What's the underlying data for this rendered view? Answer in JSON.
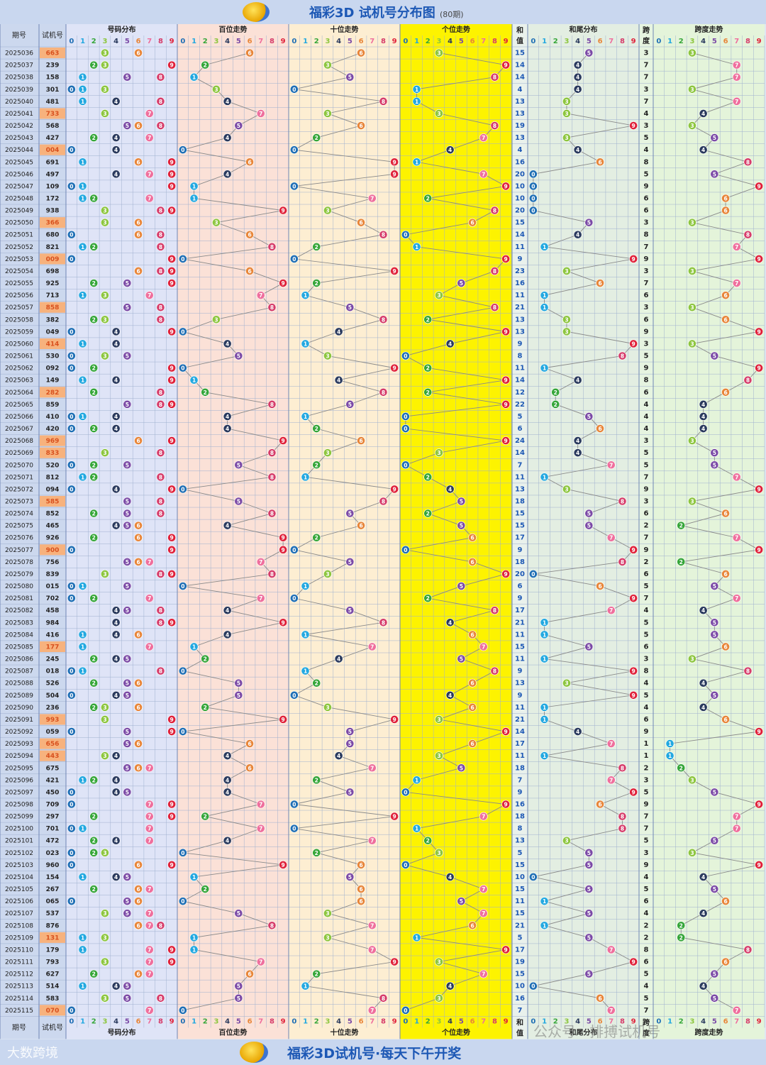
{
  "title": "福彩3D 试机号分布图",
  "title_sub": "(80期)",
  "footer_title": "福彩3D试机号·每天下午开奖",
  "watermark_left": "大数跨境",
  "watermark_right": "公众号 · 排搏试机号",
  "headers": {
    "period": "期号",
    "trial": "试机号",
    "distribution": "号码分布",
    "hundreds": "百位走势",
    "tens": "十位走势",
    "units": "个位走势",
    "sum_top": "和",
    "sum_bottom": "值",
    "sum_tail": "和尾分布",
    "span_top": "跨",
    "span_bottom": "度",
    "span_trend": "跨度走势"
  },
  "digits": [
    "0",
    "1",
    "2",
    "3",
    "4",
    "5",
    "6",
    "7",
    "8",
    "9"
  ],
  "colors": {
    "0": "#1f6fb5",
    "1": "#22a8e0",
    "2": "#35a639",
    "3": "#8dc63f",
    "4": "#2a3a5e",
    "5": "#7b4aa6",
    "6": "#e8863a",
    "7": "#ef6f9d",
    "8": "#d63c6a",
    "9": "#e0213a",
    "highlight_trial": "#f7b27d"
  },
  "chart_data": {
    "type": "table",
    "periods": [
      "2025036",
      "2025037",
      "2025038",
      "2025039",
      "2025040",
      "2025041",
      "2025042",
      "2025043",
      "2025044",
      "2025045",
      "2025046",
      "2025047",
      "2025048",
      "2025049",
      "2025050",
      "2025051",
      "2025052",
      "2025053",
      "2025054",
      "2025055",
      "2025056",
      "2025057",
      "2025058",
      "2025059",
      "2025060",
      "2025061",
      "2025062",
      "2025063",
      "2025064",
      "2025065",
      "2025066",
      "2025067",
      "2025068",
      "2025069",
      "2025070",
      "2025071",
      "2025072",
      "2025073",
      "2025074",
      "2025075",
      "2025076",
      "2025077",
      "2025078",
      "2025079",
      "2025080",
      "2025081",
      "2025082",
      "2025083",
      "2025084",
      "2025085",
      "2025086",
      "2025087",
      "2025088",
      "2025089",
      "2025090",
      "2025091",
      "2025092",
      "2025093",
      "2025094",
      "2025095",
      "2025096",
      "2025097",
      "2025098",
      "2025099",
      "2025100",
      "2025101",
      "2025102",
      "2025103",
      "2025104",
      "2025105",
      "2025106",
      "2025107",
      "2025108",
      "2025109",
      "2025110",
      "2025111",
      "2025112",
      "2025113",
      "2025114",
      "2025115"
    ],
    "trial_numbers": [
      "663",
      "239",
      "158",
      "301",
      "481",
      "733",
      "568",
      "427",
      "004",
      "691",
      "497",
      "109",
      "172",
      "938",
      "366",
      "680",
      "821",
      "009",
      "698",
      "925",
      "713",
      "858",
      "382",
      "049",
      "414",
      "530",
      "092",
      "149",
      "282",
      "859",
      "410",
      "420",
      "969",
      "833",
      "520",
      "812",
      "094",
      "585",
      "852",
      "465",
      "926",
      "900",
      "756",
      "839",
      "015",
      "702",
      "458",
      "984",
      "416",
      "177",
      "245",
      "018",
      "526",
      "504",
      "236",
      "993",
      "059",
      "656",
      "443",
      "675",
      "421",
      "450",
      "709",
      "297",
      "701",
      "472",
      "023",
      "960",
      "154",
      "267",
      "065",
      "537",
      "876",
      "131",
      "179",
      "793",
      "627",
      "514",
      "583",
      "070"
    ],
    "sums": [
      15,
      14,
      14,
      4,
      13,
      13,
      19,
      13,
      4,
      16,
      20,
      10,
      10,
      20,
      15,
      14,
      11,
      9,
      23,
      16,
      11,
      21,
      13,
      13,
      9,
      8,
      11,
      14,
      12,
      22,
      5,
      6,
      24,
      14,
      7,
      11,
      13,
      18,
      15,
      15,
      17,
      9,
      18,
      20,
      6,
      9,
      17,
      21,
      11,
      15,
      11,
      9,
      13,
      9,
      11,
      21,
      14,
      17,
      11,
      18,
      7,
      9,
      16,
      18,
      8,
      13,
      5,
      15,
      10,
      15,
      11,
      15,
      21,
      5,
      17,
      19,
      15,
      10,
      16,
      7
    ],
    "spans": [
      3,
      7,
      7,
      3,
      7,
      4,
      3,
      5,
      4,
      8,
      5,
      9,
      6,
      6,
      3,
      8,
      7,
      9,
      3,
      7,
      6,
      3,
      6,
      9,
      3,
      5,
      9,
      8,
      6,
      4,
      4,
      4,
      3,
      5,
      5,
      7,
      9,
      3,
      6,
      2,
      7,
      9,
      2,
      6,
      5,
      7,
      4,
      5,
      5,
      6,
      3,
      8,
      4,
      5,
      4,
      6,
      9,
      1,
      1,
      2,
      3,
      5,
      9,
      7,
      7,
      5,
      3,
      9,
      4,
      5,
      6,
      4,
      2,
      2,
      8,
      6,
      5,
      4,
      5,
      7
    ]
  }
}
